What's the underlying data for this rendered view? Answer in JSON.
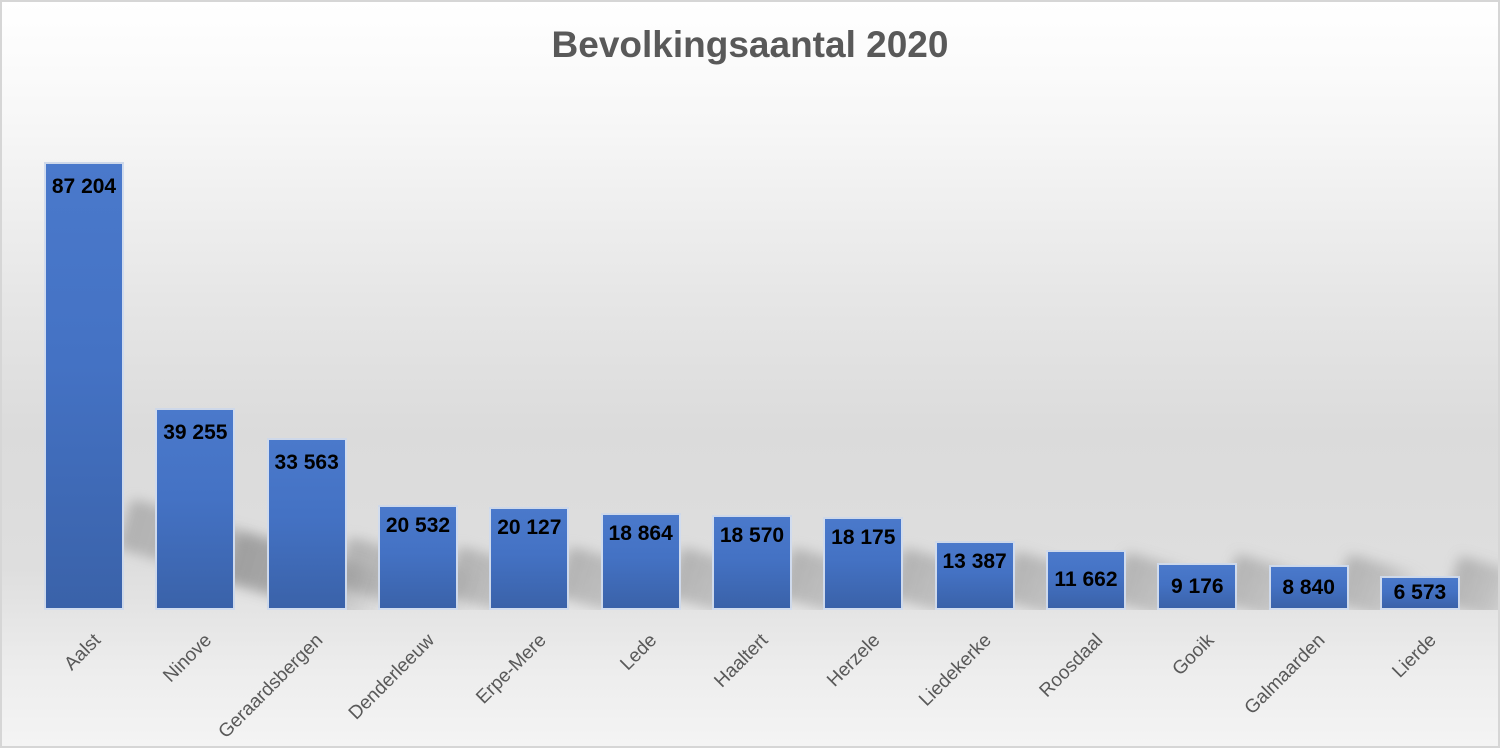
{
  "chart_data": {
    "type": "bar",
    "title": "Bevolkingsaantal 2020",
    "categories": [
      "Aalst",
      "Ninove",
      "Geraardsbergen",
      "Denderleeuw",
      "Erpe-Mere",
      "Lede",
      "Haaltert",
      "Herzele",
      "Liedekerke",
      "Roosdaal",
      "Gooik",
      "Galmaarden",
      "Lierde"
    ],
    "values": [
      87204,
      39255,
      33563,
      20532,
      20127,
      18864,
      18570,
      18175,
      13387,
      11662,
      9176,
      8840,
      6573
    ],
    "value_labels": [
      "87 204",
      "39 255",
      "33 563",
      "20 532",
      "20 127",
      "18 864",
      "18 570",
      "18 175",
      "13 387",
      "11 662",
      "9 176",
      "8 840",
      "6 573"
    ],
    "xlabel": "",
    "ylabel": "",
    "ylim": [
      0,
      90000
    ],
    "grid": false,
    "legend": false,
    "axis_lines": false,
    "value_label_position": "inside-end",
    "category_label_rotation_deg": -45,
    "bar_effect": "perspective-shadow-lower-right",
    "colors": {
      "bar_fill": "#4472C4",
      "bar_fill_top": "#4A79CB",
      "bar_fill_bottom": "#3A62A9",
      "bar_border": "#E9EDF4",
      "title_text": "#595959",
      "category_text": "#595959",
      "value_text": "#000000",
      "background_top": "#FFFFFF",
      "background_mid": "#DBDBDB",
      "background_bottom": "#F4F4F4",
      "chart_border": "#D6D6D6",
      "shadow": "#7A7A7A"
    }
  }
}
